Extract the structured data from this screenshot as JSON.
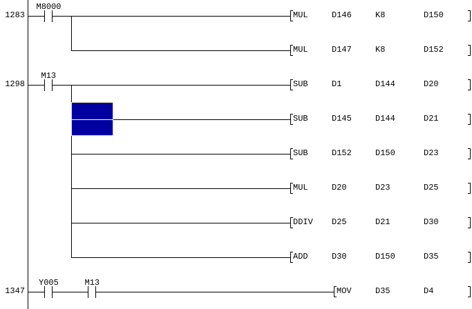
{
  "editor": {
    "cursor_color": "#0000a0",
    "rungs": [
      {
        "step": "1283",
        "contacts": [
          {
            "device": "M8000",
            "type": "normally-open"
          }
        ],
        "instructions": [
          {
            "mnemonic": "MUL",
            "operands": [
              "D146",
              "K8",
              "D150"
            ]
          },
          {
            "mnemonic": "MUL",
            "operands": [
              "D147",
              "K8",
              "D152"
            ]
          }
        ]
      },
      {
        "step": "1298",
        "contacts": [
          {
            "device": "M13",
            "type": "normally-open"
          }
        ],
        "instructions": [
          {
            "mnemonic": "SUB",
            "operands": [
              "D1",
              "D144",
              "D20"
            ]
          },
          {
            "mnemonic": "SUB",
            "operands": [
              "D145",
              "D144",
              "D21"
            ]
          },
          {
            "mnemonic": "SUB",
            "operands": [
              "D152",
              "D150",
              "D23"
            ]
          },
          {
            "mnemonic": "MUL",
            "operands": [
              "D20",
              "D23",
              "D25"
            ]
          },
          {
            "mnemonic": "DDIV",
            "operands": [
              "D25",
              "D21",
              "D30"
            ]
          },
          {
            "mnemonic": "ADD",
            "operands": [
              "D30",
              "D150",
              "D35"
            ]
          }
        ]
      },
      {
        "step": "1347",
        "contacts": [
          {
            "device": "Y005",
            "type": "normally-open"
          },
          {
            "device": "M13",
            "type": "normally-open"
          }
        ],
        "instructions": [
          {
            "mnemonic": "MOV",
            "operands": [
              "D35",
              "D4"
            ]
          }
        ]
      }
    ]
  }
}
